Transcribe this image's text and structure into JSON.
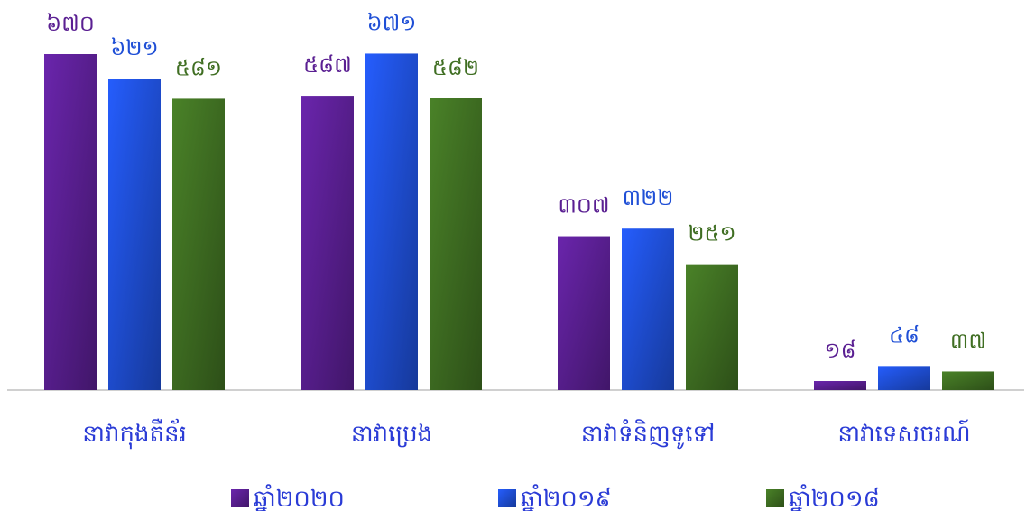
{
  "chart_data": {
    "type": "bar",
    "categories": [
      "នាវាកុងតឺន័រ",
      "នាវាប្រេង",
      "នាវាទំនិញទូទៅ",
      "នាវាទេសចរណ៍"
    ],
    "series": [
      {
        "name": "ឆ្នាំ២០២០",
        "color": "#5a1f92",
        "values": [
          670,
          587,
          307,
          18
        ],
        "labels": [
          "៦៧០",
          "៥៨៧",
          "៣០៧",
          "១៨"
        ]
      },
      {
        "name": "ឆ្នាំ២០១៩",
        "color": "#1f4fd6",
        "values": [
          621,
          671,
          322,
          48
        ],
        "labels": [
          "៦២១",
          "៦៧១",
          "៣២២",
          "៤៨"
        ]
      },
      {
        "name": "ឆ្នាំ២០១៨",
        "color": "#3f6e22",
        "values": [
          581,
          582,
          251,
          37
        ],
        "labels": [
          "៥៨១",
          "៥៨២",
          "២៥១",
          "៣៧"
        ]
      }
    ],
    "ylim": [
      0,
      700
    ],
    "grid": false,
    "legend": "bottom"
  }
}
